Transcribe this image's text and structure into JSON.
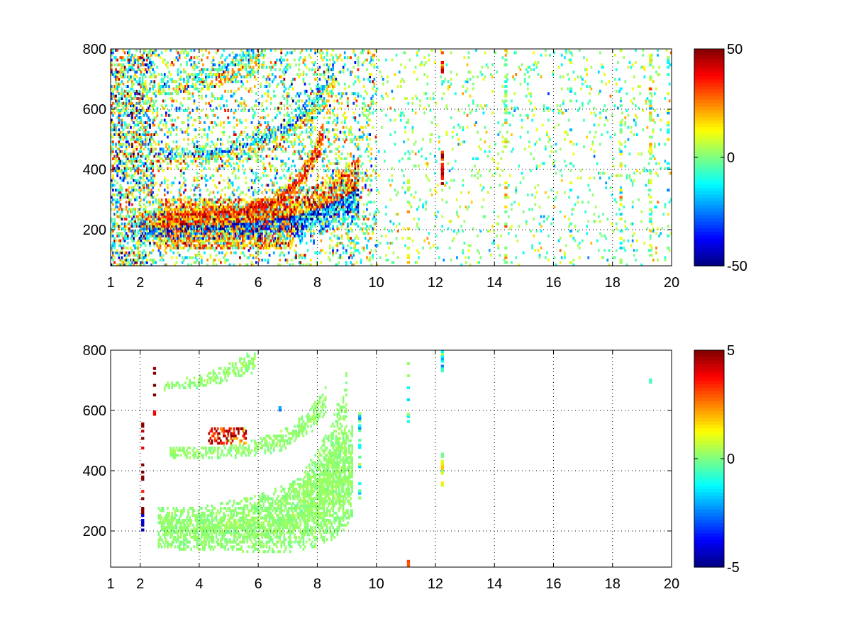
{
  "figure": {
    "background": "#ffffff"
  },
  "chart_data": [
    {
      "type": "heatmap",
      "title": "",
      "xlabel": "",
      "ylabel": "",
      "xlim": [
        1,
        20
      ],
      "ylim": [
        80,
        800
      ],
      "x_ticks": [
        1,
        2,
        4,
        6,
        8,
        10,
        12,
        14,
        16,
        18,
        20
      ],
      "x_tick_labels": [
        "1",
        "2",
        "4",
        "6",
        "8",
        "10",
        "12",
        "14",
        "16",
        "18",
        "20"
      ],
      "y_ticks": [
        200,
        400,
        600,
        800
      ],
      "y_tick_labels": [
        "200",
        "400",
        "600",
        "800"
      ],
      "grid": true,
      "colormap": "jet",
      "colorbar": {
        "min": -50,
        "max": 50,
        "ticks": [
          50,
          0,
          -50
        ],
        "tick_labels": [
          "50",
          "0",
          "-50"
        ]
      },
      "features": [
        {
          "kind": "curve",
          "x_range": [
            2.0,
            9.4
          ],
          "y_start": 210,
          "y_end": 340,
          "curvature": 4,
          "width": 45,
          "value": -28,
          "alt_value": 28,
          "jitter": 18,
          "density": 0.92
        },
        {
          "kind": "curve",
          "x_range": [
            2.6,
            8.2
          ],
          "y_start": 250,
          "y_end": 520,
          "curvature": 6,
          "width": 18,
          "value": 35,
          "jitter": 10,
          "density": 0.85
        },
        {
          "kind": "band",
          "x_range": [
            2.6,
            7.2
          ],
          "y_bottom": 140,
          "y_top": 300,
          "value": 20,
          "jitter": 14,
          "density": 0.6
        },
        {
          "kind": "curve",
          "x_range": [
            2.6,
            8.6
          ],
          "y_start": 440,
          "y_end": 720,
          "curvature": 4,
          "width": 28,
          "value": 12,
          "alt_value": -18,
          "jitter": 14,
          "density": 0.55
        },
        {
          "kind": "curve",
          "x_range": [
            2.6,
            6.2
          ],
          "y_start": 670,
          "y_end": 800,
          "curvature": 2,
          "width": 26,
          "value": 14,
          "alt_value": -14,
          "jitter": 14,
          "density": 0.5
        },
        {
          "kind": "band",
          "x_range": [
            1.0,
            2.5
          ],
          "y_bottom": 80,
          "y_top": 800,
          "value": 0,
          "jitter": 25,
          "density": 0.45
        },
        {
          "kind": "band",
          "x_range": [
            2.5,
            10.0
          ],
          "y_bottom": 80,
          "y_top": 800,
          "value": 0,
          "jitter": 18,
          "density": 0.18
        },
        {
          "kind": "band",
          "x_range": [
            10.0,
            20.0
          ],
          "y_bottom": 80,
          "y_top": 800,
          "value": 0,
          "jitter": 10,
          "density": 0.06
        },
        {
          "kind": "column",
          "x": 12.25,
          "y_bottom": 350,
          "y_top": 460,
          "value": 40,
          "jitter": 6,
          "density": 0.9
        },
        {
          "kind": "column",
          "x": 12.25,
          "y_bottom": 720,
          "y_top": 800,
          "value": 30,
          "jitter": 10,
          "density": 0.7
        },
        {
          "kind": "column",
          "x": 11.1,
          "y_bottom": 80,
          "y_top": 400,
          "value": 8,
          "jitter": 8,
          "density": 0.25
        },
        {
          "kind": "column",
          "x": 14.4,
          "y_bottom": 80,
          "y_top": 800,
          "value": 5,
          "jitter": 10,
          "density": 0.3
        },
        {
          "kind": "column",
          "x": 19.3,
          "y_bottom": 80,
          "y_top": 800,
          "value": 6,
          "jitter": 10,
          "density": 0.3
        },
        {
          "kind": "column",
          "x": 18.3,
          "y_bottom": 80,
          "y_top": 800,
          "value": 0,
          "jitter": 12,
          "density": 0.22
        },
        {
          "kind": "column",
          "x": 16.6,
          "y_bottom": 80,
          "y_top": 800,
          "value": -4,
          "jitter": 10,
          "density": 0.2
        },
        {
          "kind": "column",
          "x": 19.9,
          "y_bottom": 80,
          "y_top": 800,
          "value": -3,
          "jitter": 10,
          "density": 0.25
        }
      ]
    },
    {
      "type": "heatmap",
      "title": "",
      "xlabel": "",
      "ylabel": "",
      "xlim": [
        1,
        20
      ],
      "ylim": [
        80,
        800
      ],
      "x_ticks": [
        1,
        2,
        4,
        6,
        8,
        10,
        12,
        14,
        16,
        18,
        20
      ],
      "x_tick_labels": [
        "1",
        "2",
        "4",
        "6",
        "8",
        "10",
        "12",
        "14",
        "16",
        "18",
        "20"
      ],
      "y_ticks": [
        200,
        400,
        600,
        800
      ],
      "y_tick_labels": [
        "200",
        "400",
        "600",
        "800"
      ],
      "grid": true,
      "colormap": "jet",
      "colorbar": {
        "min": -5,
        "max": 5,
        "ticks": [
          5,
          0,
          -5
        ],
        "tick_labels": [
          "5",
          "0",
          "-5"
        ]
      },
      "features": [
        {
          "kind": "curve",
          "x_range": [
            2.6,
            9.2
          ],
          "y_start": 210,
          "y_end": 400,
          "curvature": 5,
          "width": 70,
          "value": 0.2,
          "jitter": 0.15,
          "density": 0.8
        },
        {
          "kind": "curve",
          "x_range": [
            7.5,
            9.0
          ],
          "y_start": 320,
          "y_end": 520,
          "curvature": 1,
          "width": 90,
          "value": 0.2,
          "jitter": 0.15,
          "density": 0.6
        },
        {
          "kind": "curve",
          "x_range": [
            3.0,
            8.3
          ],
          "y_start": 460,
          "y_end": 640,
          "curvature": 5,
          "width": 20,
          "value": 0.2,
          "jitter": 0.15,
          "density": 0.6
        },
        {
          "kind": "curve",
          "x_range": [
            2.8,
            5.9
          ],
          "y_start": 680,
          "y_end": 770,
          "curvature": 2,
          "width": 18,
          "value": 0.2,
          "jitter": 0.15,
          "density": 0.6
        },
        {
          "kind": "band",
          "x_range": [
            4.3,
            5.6
          ],
          "y_bottom": 490,
          "y_top": 545,
          "value": 3.6,
          "jitter": 1.2,
          "density": 0.55
        },
        {
          "kind": "column",
          "x": 12.25,
          "y_bottom": 340,
          "y_top": 460,
          "value": 0.5,
          "jitter": 0.8,
          "density": 0.8
        },
        {
          "kind": "column",
          "x": 12.25,
          "y_bottom": 720,
          "y_top": 800,
          "value": -0.8,
          "jitter": 1.2,
          "density": 0.8
        },
        {
          "kind": "column",
          "x": 11.1,
          "y_bottom": 80,
          "y_top": 100,
          "value": 3.2,
          "jitter": 0.2,
          "density": 1
        },
        {
          "kind": "column",
          "x": 11.1,
          "y_bottom": 520,
          "y_top": 760,
          "value": -0.5,
          "jitter": 0.8,
          "density": 0.35
        },
        {
          "kind": "column",
          "x": 9.45,
          "y_bottom": 290,
          "y_top": 590,
          "value": -1.2,
          "jitter": 0.8,
          "density": 0.4
        },
        {
          "kind": "column",
          "x": 2.1,
          "y_bottom": 200,
          "y_top": 560,
          "value": 4.5,
          "jitter": 1.0,
          "density": 0.2
        },
        {
          "kind": "column",
          "x": 2.1,
          "y_bottom": 200,
          "y_top": 260,
          "value": -4.5,
          "jitter": 0.4,
          "density": 0.6
        },
        {
          "kind": "column",
          "x": 2.5,
          "y_bottom": 560,
          "y_top": 780,
          "value": 4.5,
          "jitter": 0.6,
          "density": 0.2
        },
        {
          "kind": "column",
          "x": 6.75,
          "y_bottom": 590,
          "y_top": 610,
          "value": -1.5,
          "jitter": 0.6,
          "density": 0.8
        },
        {
          "kind": "column",
          "x": 19.3,
          "y_bottom": 690,
          "y_top": 700,
          "value": -0.5,
          "jitter": 0.3,
          "density": 0.8
        }
      ]
    }
  ]
}
